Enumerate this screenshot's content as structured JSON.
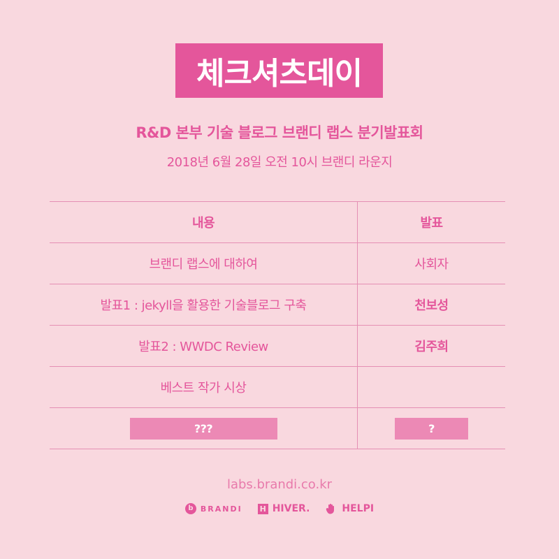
{
  "event": {
    "title": "체크셔츠데이",
    "subtitle": "R&D 본부 기술 블로그 브랜디 랩스 분기발표회",
    "datetime": "2018년 6월 28일 오전 10시 브랜디 라운지"
  },
  "schedule": {
    "headers": {
      "content": "내용",
      "speaker": "발표"
    },
    "rows": [
      {
        "content": "브랜디 랩스에 대하여",
        "speaker": "사회자"
      },
      {
        "content": "발표1 : jekyll을 활용한 기술블로그 구축",
        "speaker": "천보성"
      },
      {
        "content": "발표2 : WWDC Review",
        "speaker": "김주희"
      },
      {
        "content": "베스트 작가 시상",
        "speaker": ""
      },
      {
        "content": "???",
        "speaker": "?"
      }
    ]
  },
  "footer": {
    "website": "labs.brandi.co.kr",
    "brands": [
      {
        "name": "BRANDI",
        "icon": "brandi-logo-icon"
      },
      {
        "name": "HIVER.",
        "icon": "hiver-logo-icon"
      },
      {
        "name": "HELPI",
        "icon": "helpi-logo-icon"
      }
    ]
  },
  "colors": {
    "background": "#f9d8df",
    "accent": "#e4569b",
    "line": "#e58fb4",
    "hidden_box": "#ec89b5"
  }
}
